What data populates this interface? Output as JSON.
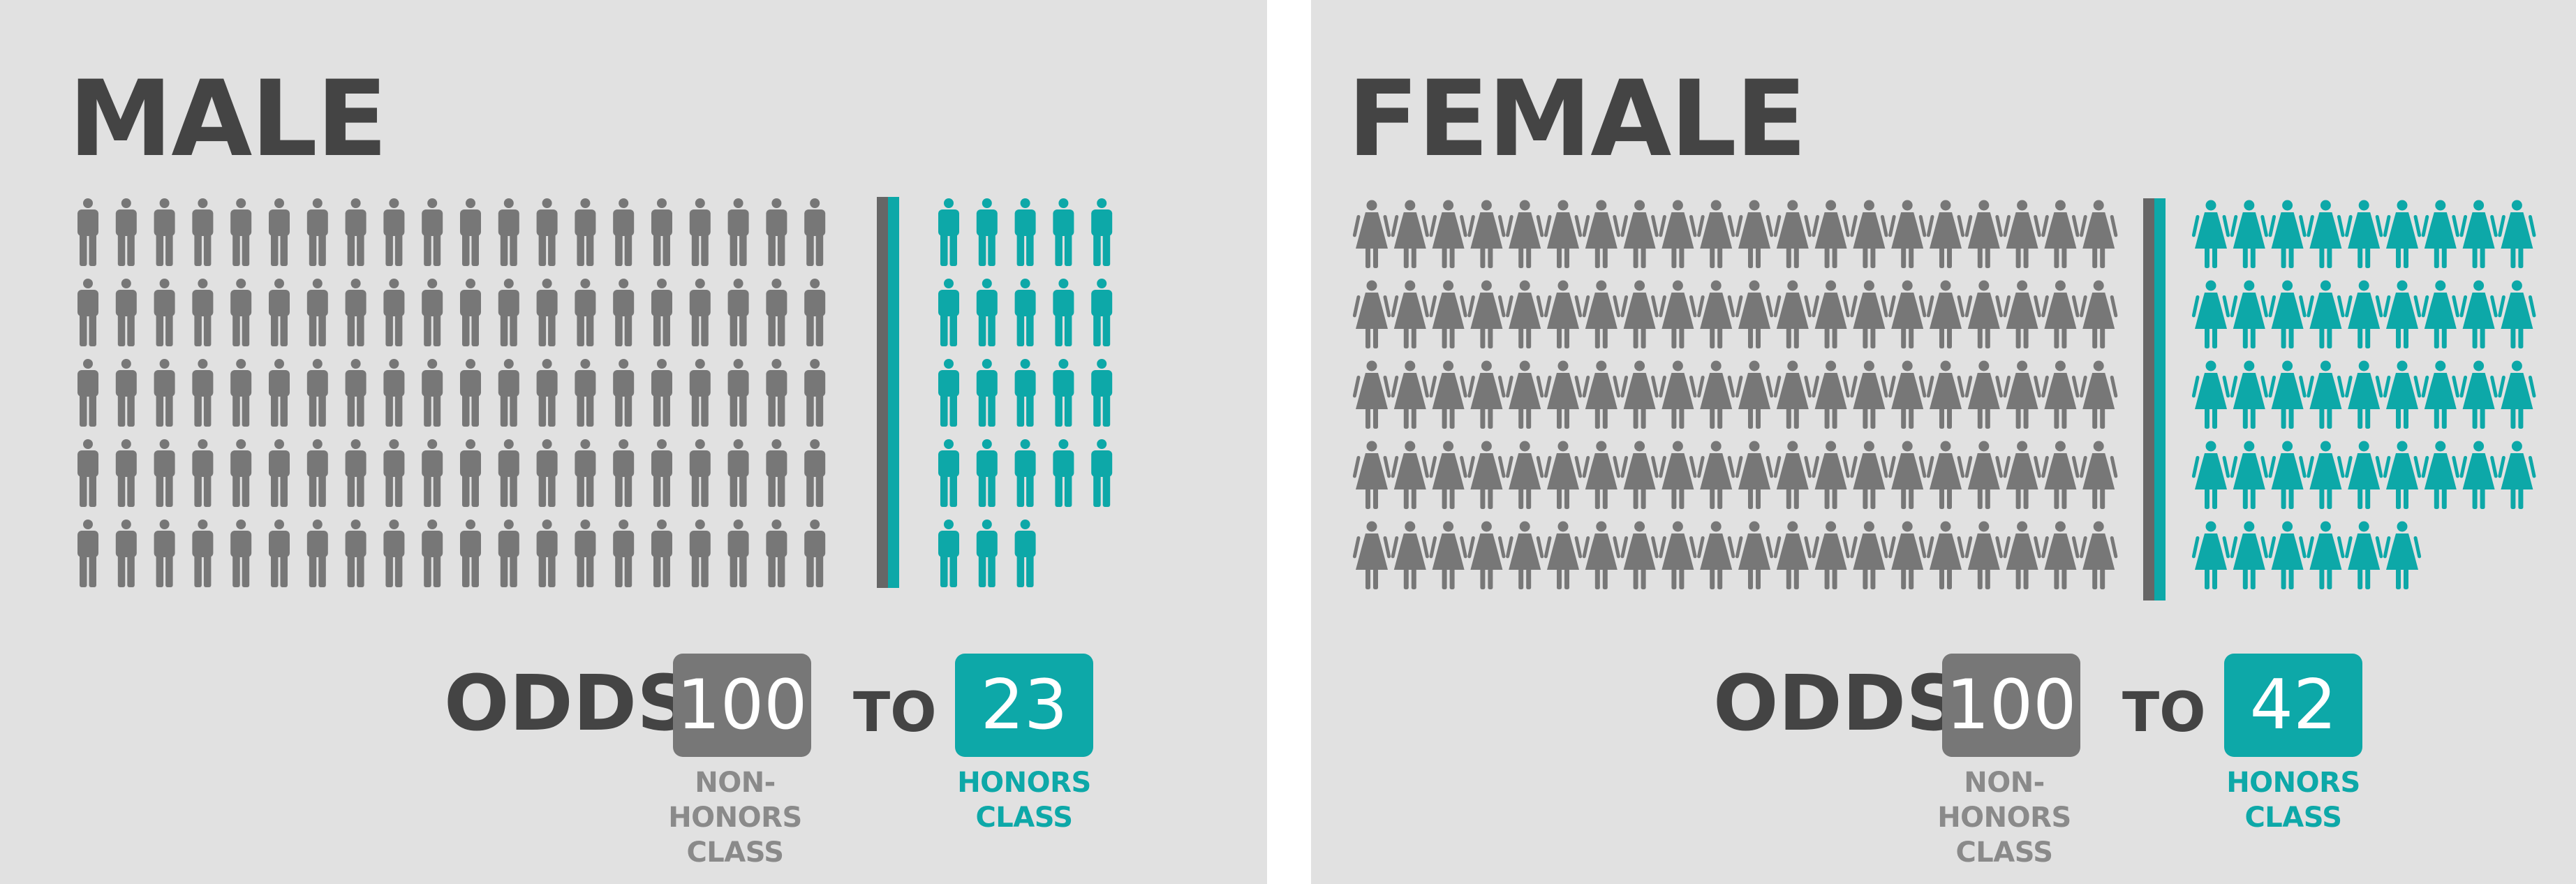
{
  "colors": {
    "panel_bg": "#e1e1e1",
    "title_text": "#444444",
    "non_honors": "#777777",
    "honors": "#0da8a8",
    "divider_gray": "#666666"
  },
  "chart_data": [
    {
      "type": "pictograph",
      "title": "MALE",
      "icon": "male-person-icon",
      "series": [
        {
          "name": "NON-HONORS CLASS",
          "value": 100
        },
        {
          "name": "HONORS CLASS",
          "value": 23
        }
      ],
      "odds_label": "ODDS",
      "odds_connector": "TO",
      "non_honors_value": "100",
      "honors_value": "23",
      "non_honors_label_lines": [
        "NON-HONORS",
        "CLASS"
      ],
      "honors_label_lines": [
        "HONORS",
        "CLASS"
      ]
    },
    {
      "type": "pictograph",
      "title": "FEMALE",
      "icon": "female-person-icon",
      "series": [
        {
          "name": "NON-HONORS CLASS",
          "value": 100
        },
        {
          "name": "HONORS CLASS",
          "value": 42
        }
      ],
      "odds_label": "ODDS",
      "odds_connector": "TO",
      "non_honors_value": "100",
      "honors_value": "42",
      "non_honors_label_lines": [
        "NON-HONORS",
        "CLASS"
      ],
      "honors_label_lines": [
        "HONORS",
        "CLASS"
      ]
    }
  ]
}
